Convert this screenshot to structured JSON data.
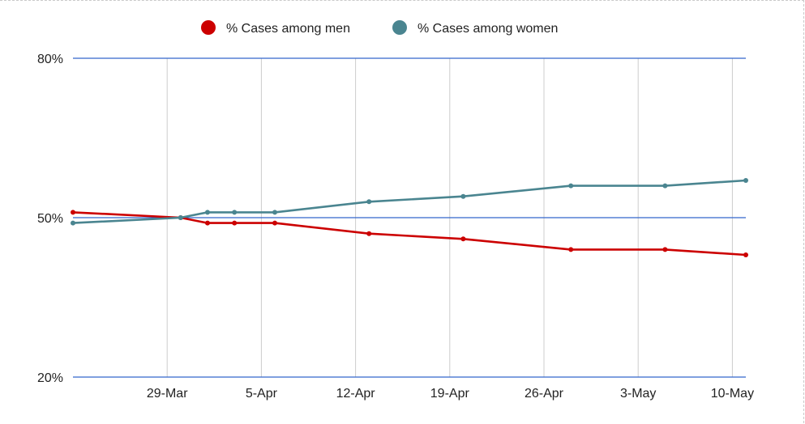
{
  "chart_data": {
    "type": "line",
    "title": "",
    "xlabel": "",
    "ylabel": "",
    "x_ticks": [
      "29-Mar",
      "5-Apr",
      "12-Apr",
      "19-Apr",
      "26-Apr",
      "3-May",
      "10-May"
    ],
    "x_tick_dates": [
      "2020-03-29",
      "2020-04-05",
      "2020-04-12",
      "2020-04-19",
      "2020-04-26",
      "2020-05-03",
      "2020-05-10"
    ],
    "y_ticks": [
      "20%",
      "50%",
      "80%"
    ],
    "y_tick_values": [
      20,
      50,
      80
    ],
    "ylim": [
      20,
      80
    ],
    "xlim": [
      "2020-03-22",
      "2020-05-11"
    ],
    "grid": true,
    "legend_position": "top",
    "x": [
      "2020-03-22",
      "2020-03-30",
      "2020-04-01",
      "2020-04-03",
      "2020-04-06",
      "2020-04-13",
      "2020-04-20",
      "2020-04-28",
      "2020-05-05",
      "2020-05-11"
    ],
    "series": [
      {
        "name": "% Cases among men",
        "color": "#cc0000",
        "values": [
          51.0,
          50.0,
          49.0,
          49.0,
          49.0,
          47.0,
          46.0,
          44.0,
          44.0,
          43.0
        ]
      },
      {
        "name": "% Cases among women",
        "color": "#4a8590",
        "values": [
          49.0,
          50.0,
          51.0,
          51.0,
          51.0,
          53.0,
          54.0,
          56.0,
          56.0,
          57.0
        ]
      }
    ]
  }
}
